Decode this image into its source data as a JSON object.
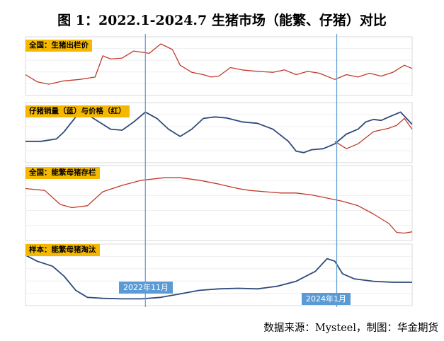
{
  "figure_title": "图 1：2022.1-2024.7 生猪市场（能繁、仔猪）对比",
  "source_note": "数据来源：Mysteel，制图：华金期货",
  "colors": {
    "red": "#c0392b",
    "blue": "#2e4a7a",
    "marker": "#5b9bd5",
    "label_bg": "#f5b800"
  },
  "markers": [
    {
      "label": "2022年11月",
      "x": 0.31
    },
    {
      "label": "2024年1月",
      "x": 0.805
    }
  ],
  "chart_data": [
    {
      "type": "line",
      "label": "全国：生猪出栏价",
      "series": [
        {
          "color": "#c0392b",
          "x": [
            0,
            0.03,
            0.06,
            0.1,
            0.14,
            0.18,
            0.2,
            0.22,
            0.25,
            0.28,
            0.32,
            0.35,
            0.38,
            0.4,
            0.43,
            0.46,
            0.48,
            0.5,
            0.53,
            0.56,
            0.6,
            0.64,
            0.67,
            0.7,
            0.73,
            0.76,
            0.8,
            0.83,
            0.86,
            0.89,
            0.92,
            0.95,
            0.98,
            1
          ],
          "y": [
            0.35,
            0.2,
            0.15,
            0.22,
            0.25,
            0.3,
            0.75,
            0.68,
            0.7,
            0.85,
            0.8,
            1.0,
            0.88,
            0.55,
            0.4,
            0.35,
            0.3,
            0.32,
            0.5,
            0.45,
            0.42,
            0.4,
            0.45,
            0.35,
            0.42,
            0.38,
            0.25,
            0.35,
            0.3,
            0.38,
            0.32,
            0.4,
            0.55,
            0.48
          ]
        }
      ]
    },
    {
      "type": "line",
      "label": "仔猪销量（蓝）与价格（红）",
      "series": [
        {
          "color": "#2e4a7a",
          "x": [
            0,
            0.04,
            0.08,
            0.1,
            0.13,
            0.16,
            0.19,
            0.22,
            0.25,
            0.28,
            0.31,
            0.34,
            0.37,
            0.4,
            0.43,
            0.46,
            0.49,
            0.52,
            0.56,
            0.6,
            0.64,
            0.68,
            0.7,
            0.72,
            0.74,
            0.77,
            0.8,
            0.83,
            0.86,
            0.88,
            0.9,
            0.92,
            0.94,
            0.97,
            1
          ],
          "y": [
            0.35,
            0.35,
            0.4,
            0.55,
            0.85,
            0.9,
            0.75,
            0.6,
            0.58,
            0.75,
            0.95,
            0.82,
            0.6,
            0.45,
            0.6,
            0.82,
            0.85,
            0.83,
            0.75,
            0.72,
            0.6,
            0.35,
            0.15,
            0.12,
            0.18,
            0.2,
            0.3,
            0.5,
            0.6,
            0.75,
            0.8,
            0.78,
            0.85,
            0.95,
            0.7
          ]
        },
        {
          "color": "#c0392b",
          "x": [
            0.8,
            0.83,
            0.86,
            0.9,
            0.94,
            0.96,
            0.98,
            1
          ],
          "y": [
            0.35,
            0.2,
            0.3,
            0.55,
            0.62,
            0.68,
            0.82,
            0.6
          ]
        }
      ]
    },
    {
      "type": "line",
      "label": "全国：能繁母猪存栏",
      "series": [
        {
          "color": "#c0392b",
          "x": [
            0,
            0.05,
            0.09,
            0.12,
            0.16,
            0.2,
            0.25,
            0.3,
            0.36,
            0.4,
            0.45,
            0.5,
            0.55,
            0.58,
            0.62,
            0.66,
            0.7,
            0.74,
            0.78,
            0.82,
            0.86,
            0.9,
            0.94,
            0.96,
            0.98,
            1
          ],
          "y": [
            0.75,
            0.72,
            0.5,
            0.45,
            0.48,
            0.7,
            0.8,
            0.88,
            0.92,
            0.92,
            0.88,
            0.82,
            0.75,
            0.72,
            0.7,
            0.68,
            0.68,
            0.65,
            0.6,
            0.55,
            0.48,
            0.35,
            0.2,
            0.06,
            0.05,
            0.07
          ]
        }
      ]
    },
    {
      "type": "line",
      "label": "样本：能繁母猪淘汰",
      "series": [
        {
          "color": "#2e4a7a",
          "x": [
            0,
            0.03,
            0.07,
            0.1,
            0.13,
            0.16,
            0.2,
            0.25,
            0.3,
            0.35,
            0.4,
            0.45,
            0.5,
            0.55,
            0.6,
            0.65,
            0.7,
            0.75,
            0.78,
            0.8,
            0.82,
            0.85,
            0.9,
            0.95,
            1
          ],
          "y": [
            0.92,
            0.8,
            0.7,
            0.5,
            0.22,
            0.08,
            0.06,
            0.05,
            0.05,
            0.08,
            0.15,
            0.22,
            0.25,
            0.26,
            0.25,
            0.3,
            0.4,
            0.6,
            0.85,
            0.8,
            0.55,
            0.45,
            0.4,
            0.38,
            0.38
          ]
        }
      ]
    }
  ]
}
